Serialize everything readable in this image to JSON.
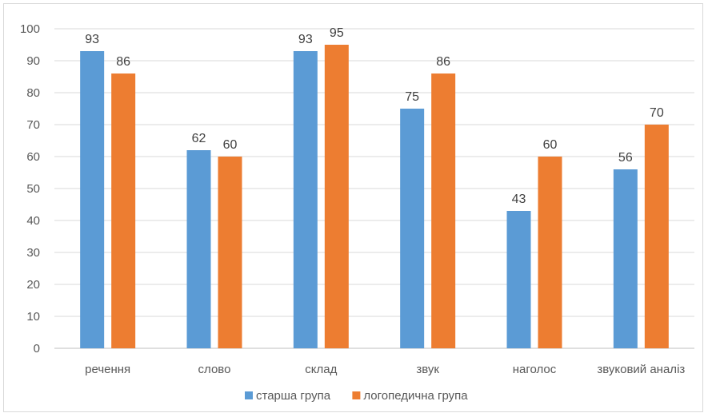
{
  "chart_data": {
    "type": "bar",
    "categories": [
      "речення",
      "слово",
      "склад",
      "звук",
      "наголос",
      "звуковий аналіз"
    ],
    "series": [
      {
        "name": "старша група",
        "values": [
          93,
          62,
          93,
          75,
          43,
          56
        ],
        "color": "#5b9bd5"
      },
      {
        "name": "логопедична група",
        "values": [
          86,
          60,
          95,
          86,
          60,
          70
        ],
        "color": "#ed7d31"
      }
    ],
    "ylim": [
      0,
      100
    ],
    "yticks": [
      0,
      10,
      20,
      30,
      40,
      50,
      60,
      70,
      80,
      90,
      100
    ],
    "grid": true,
    "legend": "bottom",
    "data_labels": true
  }
}
